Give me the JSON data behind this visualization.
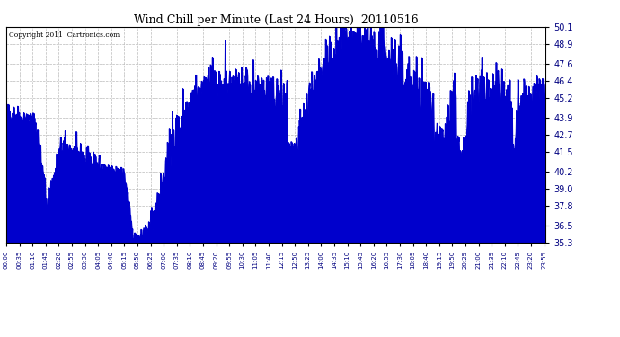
{
  "title": "Wind Chill per Minute (Last 24 Hours)  20110516",
  "copyright": "Copyright 2011  Cartronics.com",
  "yticks": [
    35.3,
    36.5,
    37.8,
    39.0,
    40.2,
    41.5,
    42.7,
    43.9,
    45.2,
    46.4,
    47.6,
    48.9,
    50.1
  ],
  "ylim": [
    35.3,
    50.1
  ],
  "line_color": "#0000cc",
  "bg_color": "#ffffff",
  "grid_color": "#aaaaaa",
  "title_color": "#000000",
  "copyright_color": "#000000",
  "figsize": [
    6.9,
    3.75
  ],
  "dpi": 100
}
